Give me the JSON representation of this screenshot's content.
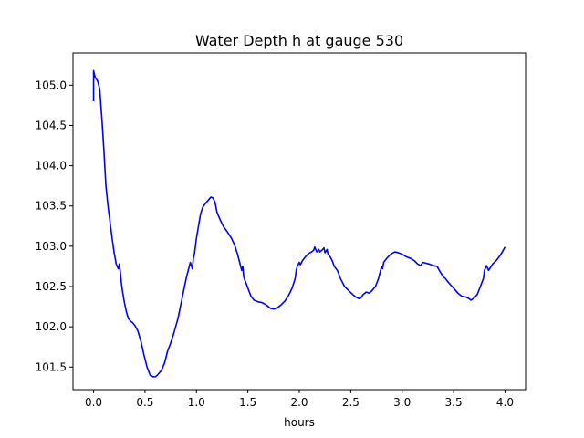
{
  "chart_data": {
    "type": "line",
    "title": "Water Depth h at gauge 530",
    "xlabel": "hours",
    "ylabel": "",
    "xlim": [
      -0.2,
      4.2
    ],
    "ylim": [
      101.22,
      105.4
    ],
    "xticks": [
      0.0,
      0.5,
      1.0,
      1.5,
      2.0,
      2.5,
      3.0,
      3.5,
      4.0
    ],
    "xtick_labels": [
      "0.0",
      "0.5",
      "1.0",
      "1.5",
      "2.0",
      "2.5",
      "3.0",
      "3.5",
      "4.0"
    ],
    "yticks": [
      101.5,
      102.0,
      102.5,
      103.0,
      103.5,
      104.0,
      104.5,
      105.0
    ],
    "ytick_labels": [
      "101.5",
      "102.0",
      "102.5",
      "103.0",
      "103.5",
      "104.0",
      "104.5",
      "105.0"
    ],
    "grid": false,
    "series": [
      {
        "name": "",
        "color": "#0000ff",
        "x": [
          0.0,
          0.0,
          0.015,
          0.04,
          0.06,
          0.08,
          0.1,
          0.12,
          0.14,
          0.16,
          0.18,
          0.2,
          0.22,
          0.24,
          0.25,
          0.26,
          0.27,
          0.28,
          0.3,
          0.32,
          0.34,
          0.36,
          0.38,
          0.4,
          0.43,
          0.46,
          0.49,
          0.52,
          0.55,
          0.58,
          0.6,
          0.62,
          0.64,
          0.66,
          0.69,
          0.72,
          0.75,
          0.78,
          0.82,
          0.86,
          0.9,
          0.94,
          0.96,
          0.97,
          0.98,
          1.0,
          1.02,
          1.04,
          1.06,
          1.08,
          1.1,
          1.12,
          1.14,
          1.16,
          1.18,
          1.2,
          1.23,
          1.26,
          1.3,
          1.34,
          1.37,
          1.4,
          1.42,
          1.44,
          1.45,
          1.46,
          1.47,
          1.48,
          1.5,
          1.53,
          1.56,
          1.6,
          1.64,
          1.68,
          1.72,
          1.75,
          1.78,
          1.82,
          1.86,
          1.9,
          1.93,
          1.96,
          1.97,
          1.98,
          2.0,
          2.01,
          2.03,
          2.06,
          2.09,
          2.12,
          2.14,
          2.15,
          2.17,
          2.19,
          2.2,
          2.22,
          2.24,
          2.25,
          2.27,
          2.28,
          2.3,
          2.32,
          2.34,
          2.37,
          2.4,
          2.44,
          2.48,
          2.52,
          2.55,
          2.58,
          2.6,
          2.62,
          2.65,
          2.68,
          2.7,
          2.72,
          2.74,
          2.77,
          2.8,
          2.81,
          2.82,
          2.85,
          2.88,
          2.9,
          2.93,
          2.96,
          3.0,
          3.04,
          3.08,
          3.12,
          3.15,
          3.18,
          3.2,
          3.23,
          3.26,
          3.3,
          3.34,
          3.37,
          3.4,
          3.42,
          3.45,
          3.5,
          3.54,
          3.58,
          3.62,
          3.65,
          3.67,
          3.7,
          3.73,
          3.76,
          3.79,
          3.8,
          3.82,
          3.84,
          3.86,
          3.88,
          3.92,
          3.96,
          4.0
        ],
        "y": [
          104.8,
          105.18,
          105.1,
          105.05,
          104.95,
          104.6,
          104.2,
          103.75,
          103.5,
          103.3,
          103.1,
          102.92,
          102.78,
          102.72,
          102.78,
          102.68,
          102.55,
          102.45,
          102.3,
          102.18,
          102.1,
          102.07,
          102.05,
          102.02,
          101.95,
          101.82,
          101.65,
          101.5,
          101.4,
          101.38,
          101.38,
          101.4,
          101.43,
          101.46,
          101.55,
          101.7,
          101.8,
          101.92,
          102.1,
          102.35,
          102.6,
          102.8,
          102.72,
          102.85,
          102.9,
          103.1,
          103.25,
          103.4,
          103.48,
          103.52,
          103.55,
          103.58,
          103.61,
          103.6,
          103.55,
          103.42,
          103.33,
          103.25,
          103.18,
          103.1,
          103.02,
          102.9,
          102.8,
          102.7,
          102.75,
          102.62,
          102.58,
          102.55,
          102.48,
          102.38,
          102.33,
          102.31,
          102.3,
          102.27,
          102.23,
          102.22,
          102.23,
          102.27,
          102.32,
          102.4,
          102.48,
          102.6,
          102.7,
          102.75,
          102.8,
          102.77,
          102.82,
          102.87,
          102.91,
          102.93,
          102.95,
          102.99,
          102.93,
          102.96,
          102.93,
          102.95,
          102.98,
          102.92,
          102.96,
          102.9,
          102.87,
          102.82,
          102.75,
          102.7,
          102.6,
          102.5,
          102.45,
          102.4,
          102.37,
          102.35,
          102.36,
          102.4,
          102.43,
          102.42,
          102.44,
          102.47,
          102.5,
          102.6,
          102.75,
          102.72,
          102.8,
          102.85,
          102.89,
          102.91,
          102.93,
          102.92,
          102.9,
          102.87,
          102.85,
          102.82,
          102.78,
          102.76,
          102.8,
          102.79,
          102.78,
          102.76,
          102.75,
          102.68,
          102.62,
          102.6,
          102.55,
          102.48,
          102.42,
          102.38,
          102.37,
          102.35,
          102.33,
          102.36,
          102.4,
          102.5,
          102.6,
          102.7,
          102.76,
          102.7,
          102.74,
          102.78,
          102.83,
          102.9,
          102.99
        ]
      }
    ]
  }
}
